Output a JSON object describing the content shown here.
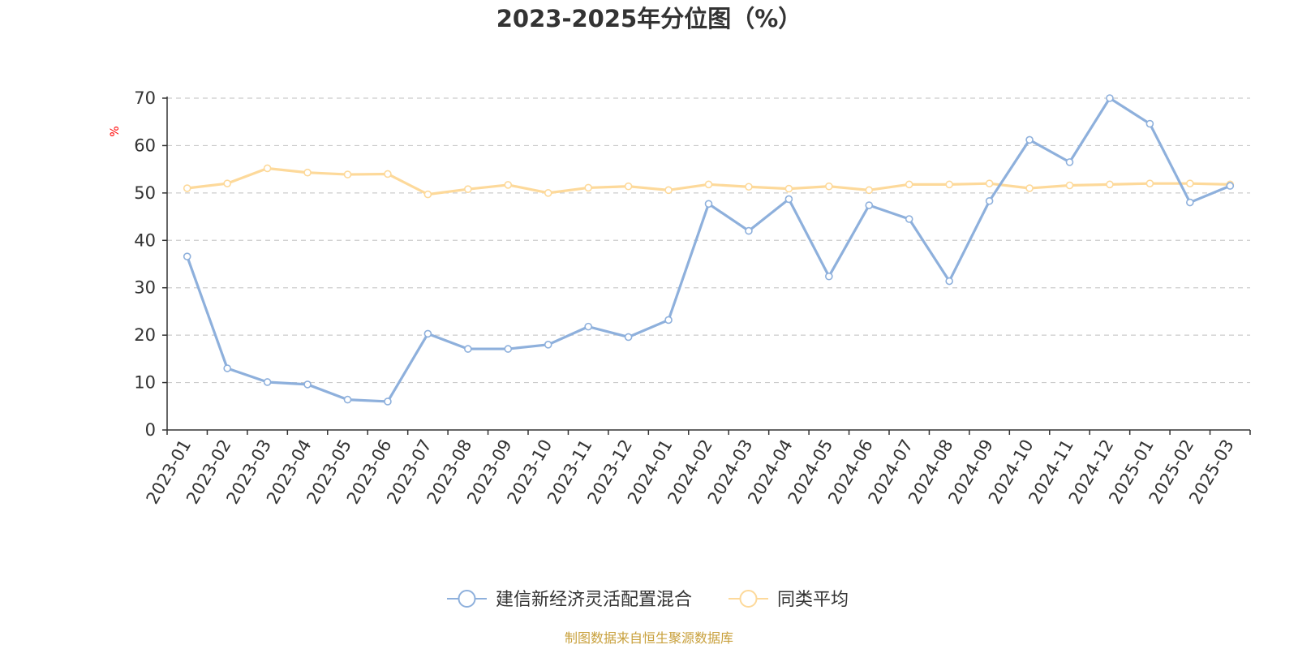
{
  "colors": {
    "fund": "#8eb0dc",
    "average": "#fdd99a",
    "axis": "#333333",
    "grid": "#cccccc",
    "unit": "#ff0000",
    "source": "#c8a03c"
  },
  "chart_data": {
    "type": "line",
    "title": "2023-2025年分位图（%）",
    "ylabel": "%",
    "xlabel": "",
    "ylim": [
      0,
      70
    ],
    "yticks": [
      "0",
      "10",
      "20",
      "30",
      "40",
      "50",
      "60",
      "70"
    ],
    "grid": true,
    "legend_position": "bottom-center",
    "categories": [
      "2023-01",
      "2023-02",
      "2023-03",
      "2023-04",
      "2023-05",
      "2023-06",
      "2023-07",
      "2023-08",
      "2023-09",
      "2023-10",
      "2023-11",
      "2023-12",
      "2024-01",
      "2024-02",
      "2024-03",
      "2024-04",
      "2024-05",
      "2024-06",
      "2024-07",
      "2024-08",
      "2024-09",
      "2024-10",
      "2024-11",
      "2024-12",
      "2025-01",
      "2025-02",
      "2025-03"
    ],
    "series": [
      {
        "name": "建信新经济灵活配置混合",
        "values": [
          36.6,
          13.0,
          10.1,
          9.6,
          6.4,
          6.0,
          20.3,
          17.1,
          17.1,
          18.0,
          21.8,
          19.6,
          23.2,
          47.7,
          42.0,
          48.7,
          32.4,
          47.4,
          44.5,
          31.4,
          48.3,
          61.2,
          56.5,
          70.0,
          64.6,
          48.0,
          51.5
        ]
      },
      {
        "name": "同类平均",
        "values": [
          51.0,
          52.0,
          55.2,
          54.3,
          53.9,
          54.0,
          49.7,
          50.8,
          51.7,
          50.0,
          51.1,
          51.4,
          50.6,
          51.8,
          51.3,
          50.9,
          51.4,
          50.6,
          51.8,
          51.8,
          52.0,
          51.0,
          51.6,
          51.8,
          52.0,
          52.0,
          51.8
        ]
      }
    ]
  },
  "legend": {
    "items": [
      "建信新经济灵活配置混合",
      "同类平均"
    ]
  },
  "source": {
    "text": "制图数据来自恒生聚源数据库"
  }
}
